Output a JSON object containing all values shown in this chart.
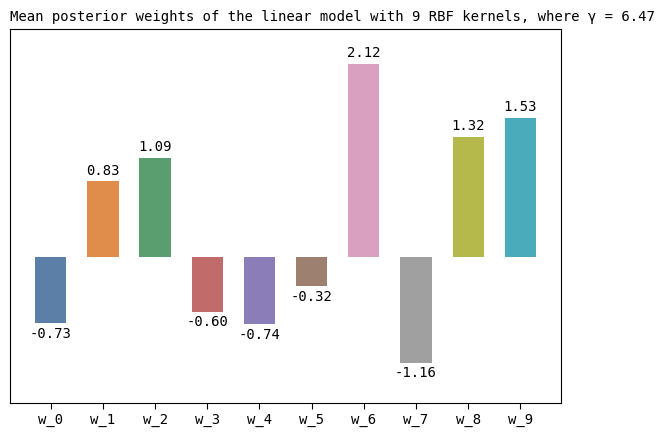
{
  "categories": [
    "w_0",
    "w_1",
    "w_2",
    "w_3",
    "w_4",
    "w_5",
    "w_6",
    "w_7",
    "w_8",
    "w_9"
  ],
  "values": [
    -0.73,
    0.83,
    1.09,
    -0.6,
    -0.74,
    -0.32,
    2.12,
    -1.16,
    1.32,
    1.53
  ],
  "bar_colors": [
    "#5b7fa6",
    "#e08c4a",
    "#5a9e6f",
    "#c26b6b",
    "#8b7db8",
    "#9e8070",
    "#d9a0c0",
    "#a0a0a0",
    "#b5b84a",
    "#4aabba"
  ],
  "title": "Mean posterior weights of the linear model with 9 RBF kernels, where γ = 6.47",
  "ylim": [
    -1.6,
    2.5
  ],
  "title_fontsize": 10,
  "tick_fontsize": 10,
  "label_fontsize": 10,
  "background_color": "#ffffff"
}
